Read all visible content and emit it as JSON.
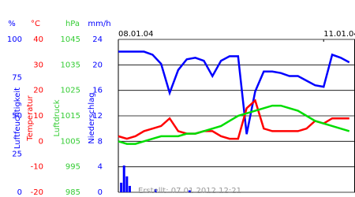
{
  "chart_data": {
    "type": "line",
    "footer": "Erstellt: 07.01.2012 12:21",
    "x": [
      0,
      3,
      6,
      9,
      12,
      15,
      18,
      21,
      24,
      27,
      30,
      33,
      36,
      39,
      42,
      45,
      48,
      51,
      54,
      57,
      60,
      63,
      66,
      69,
      72,
      75,
      78,
      81
    ],
    "xlim": [
      0,
      83
    ],
    "xticks": [
      {
        "value": 0,
        "label": "08.01.04"
      },
      {
        "value": 72,
        "label": "11.01.04"
      }
    ],
    "grid": true,
    "axes": [
      {
        "unit": "%",
        "label": "Luftfeuchtigkeit",
        "color": "#0000ff",
        "lim": [
          0,
          100
        ],
        "ticks": [
          0,
          25,
          50,
          75,
          100
        ]
      },
      {
        "unit": "°C",
        "label": "Temperatur",
        "color": "#ff0000",
        "lim": [
          -20,
          40
        ],
        "ticks": [
          -20,
          -10,
          0,
          10,
          20,
          30,
          40
        ]
      },
      {
        "unit": "hPa",
        "label": "Luftdruck",
        "color": "#33cc33",
        "lim": [
          985,
          1045
        ],
        "ticks": [
          985,
          995,
          1005,
          1015,
          1025,
          1035,
          1045
        ]
      },
      {
        "unit": "mm/h",
        "label": "Niederschlag",
        "color": "#0000ff",
        "lim": [
          0,
          24
        ],
        "ticks": [
          0,
          4,
          8,
          12,
          16,
          20,
          24
        ]
      }
    ],
    "series": [
      {
        "type": "line",
        "axis": 0,
        "color": "#0000ff",
        "values": [
          92,
          92,
          92,
          92,
          90,
          84,
          65,
          80,
          87,
          88,
          86,
          76,
          86,
          89,
          89,
          38,
          66,
          79,
          79,
          78,
          76,
          76,
          73,
          70,
          69,
          90,
          88,
          85
        ]
      },
      {
        "type": "line",
        "axis": 1,
        "color": "#ff0000",
        "values": [
          2,
          1,
          2,
          4,
          5,
          6,
          9,
          4,
          3,
          3,
          4,
          4,
          2,
          1,
          1,
          13,
          16,
          5,
          4,
          4,
          4,
          4,
          5,
          8,
          7,
          9,
          9,
          9
        ]
      },
      {
        "type": "line",
        "axis": 2,
        "color": "#00dd00",
        "values": [
          1005,
          1004,
          1004,
          1005,
          1006,
          1007,
          1007,
          1007,
          1008,
          1008,
          1009,
          1010,
          1011,
          1013,
          1015,
          1016,
          1017,
          1018,
          1019,
          1019,
          1018,
          1017,
          1015,
          1013,
          1012,
          1011,
          1010,
          1009
        ]
      },
      {
        "type": "bar",
        "axis": 3,
        "color": "#0000ff",
        "x": [
          1,
          2,
          3,
          4,
          13,
          25
        ],
        "values": [
          1.5,
          4.2,
          2.5,
          1,
          0.5,
          0.3
        ]
      }
    ]
  }
}
